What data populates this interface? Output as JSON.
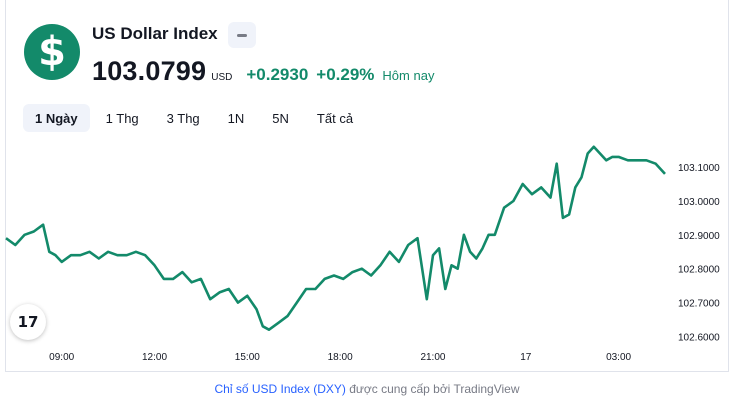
{
  "header": {
    "logo_symbol": "$",
    "title": "US Dollar Index",
    "price": "103.0799",
    "currency": "USD",
    "change": "+0.2930",
    "change_pct": "+0.29%",
    "period": "Hôm nay",
    "accent_color": "#138a6a"
  },
  "tabs": [
    {
      "label": "1 Ngày",
      "active": true
    },
    {
      "label": "1 Thg",
      "active": false
    },
    {
      "label": "3 Thg",
      "active": false
    },
    {
      "label": "1N",
      "active": false
    },
    {
      "label": "5N",
      "active": false
    },
    {
      "label": "Tất cả",
      "active": false
    }
  ],
  "tv_logo_text": "17",
  "footer": {
    "link_text": "Chỉ số USD Index (DXY)",
    "suffix": " được cung cấp bởi TradingView"
  },
  "chart_data": {
    "type": "line",
    "line_color": "#138a6a",
    "x_ticks": [
      "09:00",
      "12:00",
      "15:00",
      "18:00",
      "21:00",
      "17",
      "03:00"
    ],
    "y_ticks": [
      "103.1000",
      "103.0000",
      "102.9000",
      "102.8000",
      "102.7000",
      "102.6000"
    ],
    "ylim": [
      102.56,
      103.18
    ],
    "x_range_hours": [
      7.2,
      28.5
    ],
    "series": [
      {
        "x": [
          7.2,
          7.5,
          7.8,
          8.1,
          8.4,
          8.6,
          8.8,
          9.0,
          9.3,
          9.6,
          9.9,
          10.2,
          10.5,
          10.8,
          11.1,
          11.4,
          11.7,
          12.0,
          12.3,
          12.6,
          12.9,
          13.2,
          13.5,
          13.8,
          14.1,
          14.4,
          14.7,
          15.0,
          15.3,
          15.5,
          15.7,
          16.0,
          16.3,
          16.6,
          16.9,
          17.2,
          17.5,
          17.8,
          18.1,
          18.4,
          18.7,
          19.0,
          19.3,
          19.6,
          19.9,
          20.2,
          20.5,
          20.8,
          21.0,
          21.2,
          21.4,
          21.6,
          21.8,
          22.0,
          22.2,
          22.4,
          22.6,
          22.8,
          23.0,
          23.3,
          23.6,
          23.9,
          24.2,
          24.5,
          24.8,
          25.0,
          25.2,
          25.4,
          25.6,
          25.8,
          26.0,
          26.2,
          26.4,
          26.6,
          26.8,
          27.0,
          27.3,
          27.6,
          27.9,
          28.2,
          28.5
        ],
        "y": [
          102.89,
          102.87,
          102.9,
          102.91,
          102.93,
          102.85,
          102.84,
          102.82,
          102.84,
          102.84,
          102.85,
          102.83,
          102.85,
          102.84,
          102.84,
          102.85,
          102.84,
          102.81,
          102.77,
          102.77,
          102.79,
          102.76,
          102.77,
          102.71,
          102.73,
          102.74,
          102.7,
          102.72,
          102.68,
          102.63,
          102.62,
          102.64,
          102.66,
          102.7,
          102.74,
          102.74,
          102.77,
          102.78,
          102.77,
          102.79,
          102.8,
          102.78,
          102.81,
          102.85,
          102.82,
          102.87,
          102.89,
          102.71,
          102.84,
          102.86,
          102.74,
          102.81,
          102.8,
          102.9,
          102.85,
          102.83,
          102.86,
          102.9,
          102.9,
          102.98,
          103.0,
          103.05,
          103.02,
          103.04,
          103.01,
          103.11,
          102.95,
          102.96,
          103.04,
          103.07,
          103.14,
          103.16,
          103.14,
          103.12,
          103.13,
          103.13,
          103.12,
          103.12,
          103.12,
          103.11,
          103.08
        ]
      }
    ]
  }
}
